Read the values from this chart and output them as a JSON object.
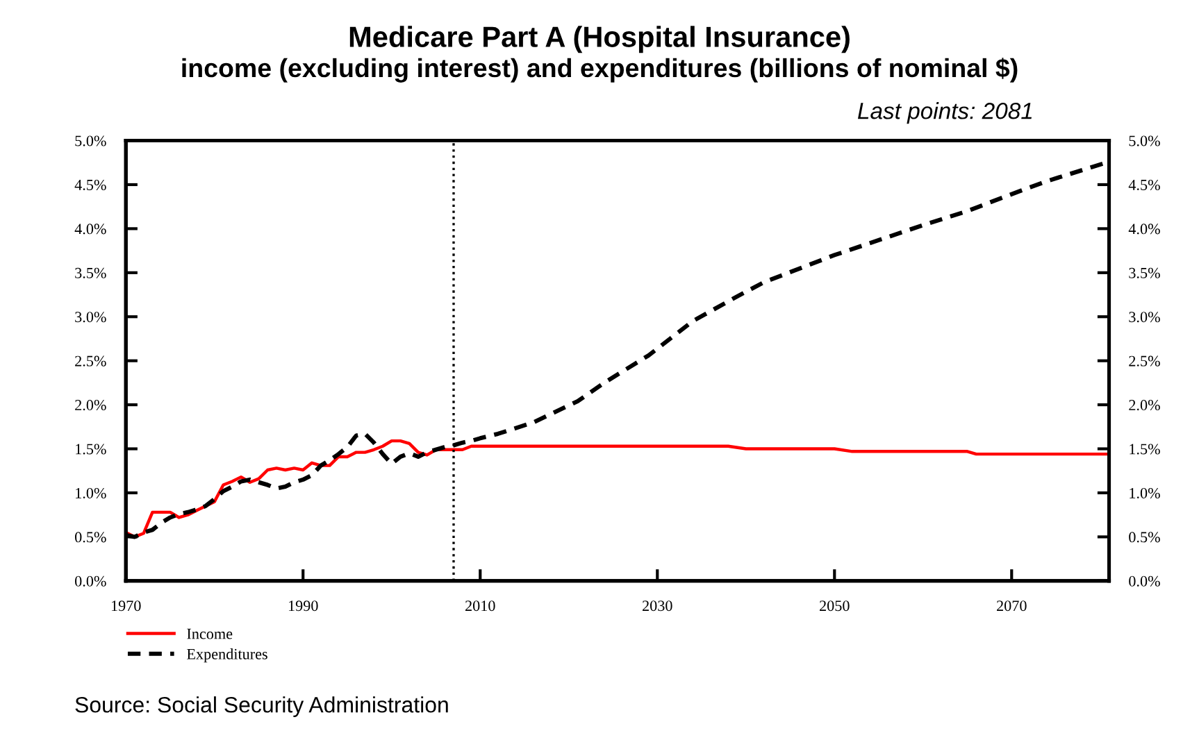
{
  "chart_data": {
    "type": "line",
    "title": "Medicare Part A (Hospital Insurance)",
    "subtitle": "income (excluding interest) and expenditures (billions of nominal $)",
    "annotations": [
      "Last points: 2081",
      "Source: Social Security Administration"
    ],
    "series": [
      {
        "name": "Income",
        "color": "#ff0000",
        "line_style": "solid",
        "x": [
          1970,
          1971,
          1972,
          1973,
          1974,
          1975,
          1976,
          1977,
          1978,
          1979,
          1980,
          1981,
          1982,
          1983,
          1984,
          1985,
          1986,
          1987,
          1988,
          1989,
          1990,
          1991,
          1992,
          1993,
          1994,
          1995,
          1996,
          1997,
          1998,
          1999,
          2000,
          2001,
          2002,
          2003,
          2004,
          2005,
          2006,
          2007,
          2008,
          2009,
          2010,
          2038,
          2040,
          2050,
          2052,
          2065,
          2066,
          2081
        ],
        "values": [
          0.55,
          0.5,
          0.54,
          0.78,
          0.78,
          0.78,
          0.72,
          0.75,
          0.8,
          0.85,
          0.9,
          1.09,
          1.13,
          1.18,
          1.12,
          1.16,
          1.26,
          1.28,
          1.26,
          1.28,
          1.26,
          1.34,
          1.31,
          1.31,
          1.41,
          1.41,
          1.46,
          1.46,
          1.49,
          1.53,
          1.59,
          1.59,
          1.56,
          1.46,
          1.43,
          1.49,
          1.49,
          1.49,
          1.49,
          1.53,
          1.53,
          1.53,
          1.5,
          1.5,
          1.47,
          1.47,
          1.44,
          1.44
        ]
      },
      {
        "name": "Expenditures",
        "color": "#000000",
        "line_style": "dashed",
        "x": [
          1970,
          1971,
          1972,
          1973,
          1974,
          1975,
          1976,
          1977,
          1978,
          1979,
          1980,
          1981,
          1982,
          1983,
          1984,
          1985,
          1986,
          1987,
          1988,
          1989,
          1990,
          1991,
          1992,
          1993,
          1994,
          1995,
          1996,
          1997,
          1998,
          1999,
          2000,
          2001,
          2002,
          2003,
          2004,
          2005,
          2006,
          2007,
          2008,
          2009,
          2010,
          2012,
          2016,
          2021,
          2024,
          2029,
          2034,
          2039,
          2042,
          2050,
          2060,
          2065,
          2071,
          2074,
          2081
        ],
        "values": [
          0.52,
          0.5,
          0.55,
          0.58,
          0.66,
          0.72,
          0.76,
          0.78,
          0.81,
          0.85,
          0.93,
          1.02,
          1.07,
          1.13,
          1.15,
          1.12,
          1.09,
          1.05,
          1.07,
          1.12,
          1.15,
          1.2,
          1.31,
          1.37,
          1.44,
          1.52,
          1.65,
          1.67,
          1.57,
          1.44,
          1.33,
          1.41,
          1.45,
          1.41,
          1.46,
          1.49,
          1.52,
          1.54,
          1.57,
          1.59,
          1.62,
          1.67,
          1.8,
          2.04,
          2.25,
          2.56,
          2.95,
          3.23,
          3.39,
          3.7,
          4.04,
          4.2,
          4.43,
          4.54,
          4.76
        ]
      }
    ],
    "xlim": [
      1970,
      2081
    ],
    "xticks": [
      1970,
      1990,
      2010,
      2030,
      2050,
      2070
    ],
    "ylim": [
      0,
      5
    ],
    "yticks": [
      {
        "value": 0,
        "label": "0.0%"
      },
      {
        "value": 0.5,
        "label": "0.5%"
      },
      {
        "value": 1,
        "label": "1.0%"
      },
      {
        "value": 1.5,
        "label": "1.5%"
      },
      {
        "value": 2,
        "label": "2.0%"
      },
      {
        "value": 2.5,
        "label": "2.5%"
      },
      {
        "value": 3,
        "label": "3.0%"
      },
      {
        "value": 3.5,
        "label": "3.5%"
      },
      {
        "value": 4,
        "label": "4.0%"
      },
      {
        "value": 4.5,
        "label": "4.5%"
      },
      {
        "value": 5,
        "label": "5.0%"
      }
    ],
    "y2lim": [
      0,
      5
    ],
    "y2ticks": [
      {
        "value": 0,
        "label": "0.0%"
      },
      {
        "value": 0.5,
        "label": "0.5%"
      },
      {
        "value": 1,
        "label": "1.0%"
      },
      {
        "value": 1.5,
        "label": "1.5%"
      },
      {
        "value": 2,
        "label": "2.0%"
      },
      {
        "value": 2.5,
        "label": "2.5%"
      },
      {
        "value": 3,
        "label": "3.0%"
      },
      {
        "value": 3.5,
        "label": "3.5%"
      },
      {
        "value": 4,
        "label": "4.0%"
      },
      {
        "value": 4.5,
        "label": "4.5%"
      },
      {
        "value": 5,
        "label": "5.0%"
      }
    ],
    "ref_lines": [
      {
        "axis": "x",
        "value": 2007,
        "color": "#000000",
        "line_style": "dotted"
      }
    ],
    "grid": false,
    "legend": "bottom left",
    "marker": "none"
  }
}
